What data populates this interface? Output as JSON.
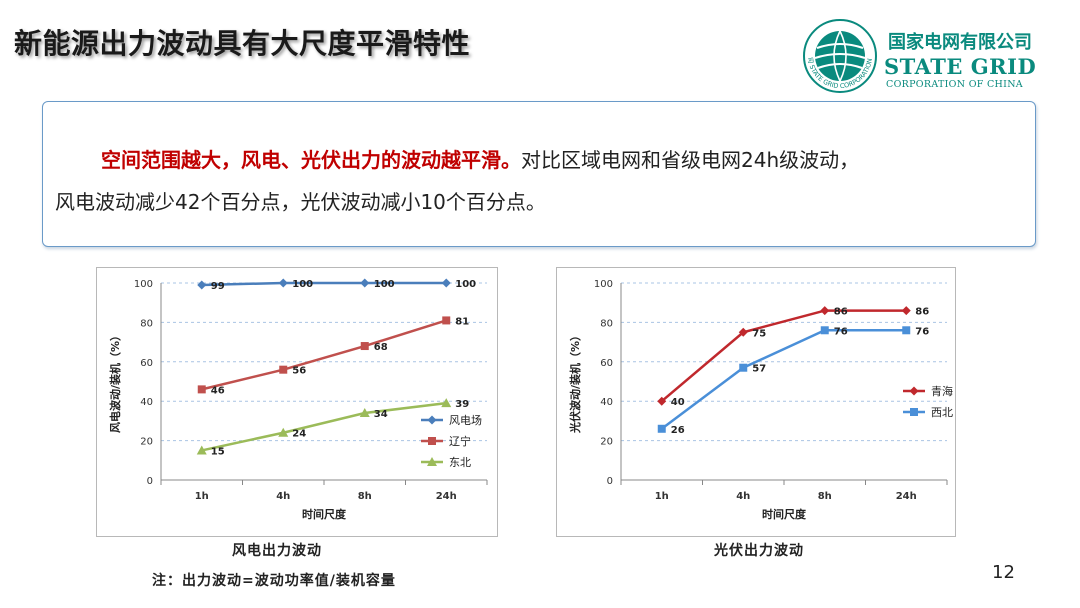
{
  "slide": {
    "title": "新能源出力波动具有大尺度平滑特性",
    "page_number": "12",
    "note": "注：出力波动=波动功率值/装机容量"
  },
  "logo": {
    "cn": "国家电网有限公司",
    "en": "STATE GRID",
    "en_sub": "CORPORATION OF CHINA",
    "emblem_text": "国家电网公司 STATE GRID CORPORATION OF CHINA",
    "color": "#0a8a7e"
  },
  "callout": {
    "highlight": "空间范围越大，风电、光伏出力的波动越平滑。",
    "line1_rest": "对比区域电网和省级电网24h级波动，",
    "line2": "风电波动减少42个百分点，光伏波动减小10个百分点。"
  },
  "chart_data": [
    {
      "type": "line",
      "caption": "风电出力波动",
      "xlabel": "时间尺度",
      "ylabel": "风电波动/装机（%）",
      "categories": [
        "1h",
        "4h",
        "8h",
        "24h"
      ],
      "ylim": [
        0,
        100
      ],
      "yticks": [
        0,
        20,
        40,
        60,
        80,
        100
      ],
      "grid": "horizontal dashed",
      "legend_position": "right",
      "series": [
        {
          "name": "风电场",
          "values": [
            99,
            100,
            100,
            100
          ],
          "color": "#4a7ebb",
          "marker": "diamond"
        },
        {
          "name": "辽宁",
          "values": [
            46,
            56,
            68,
            81
          ],
          "color": "#c0504d",
          "marker": "square"
        },
        {
          "name": "东北",
          "values": [
            15,
            24,
            34,
            39
          ],
          "color": "#9bbb59",
          "marker": "triangle"
        }
      ]
    },
    {
      "type": "line",
      "caption": "光伏出力波动",
      "xlabel": "时间尺度",
      "ylabel": "光伏波动/装机（%）",
      "categories": [
        "1h",
        "4h",
        "8h",
        "24h"
      ],
      "ylim": [
        0,
        100
      ],
      "yticks": [
        0,
        20,
        40,
        60,
        80,
        100
      ],
      "grid": "horizontal dashed",
      "legend_position": "right",
      "series": [
        {
          "name": "青海",
          "values": [
            40,
            75,
            86,
            86
          ],
          "color": "#c0282d",
          "marker": "diamond"
        },
        {
          "name": "西北",
          "values": [
            26,
            57,
            76,
            76
          ],
          "color": "#4a8fd8",
          "marker": "square"
        }
      ]
    }
  ]
}
